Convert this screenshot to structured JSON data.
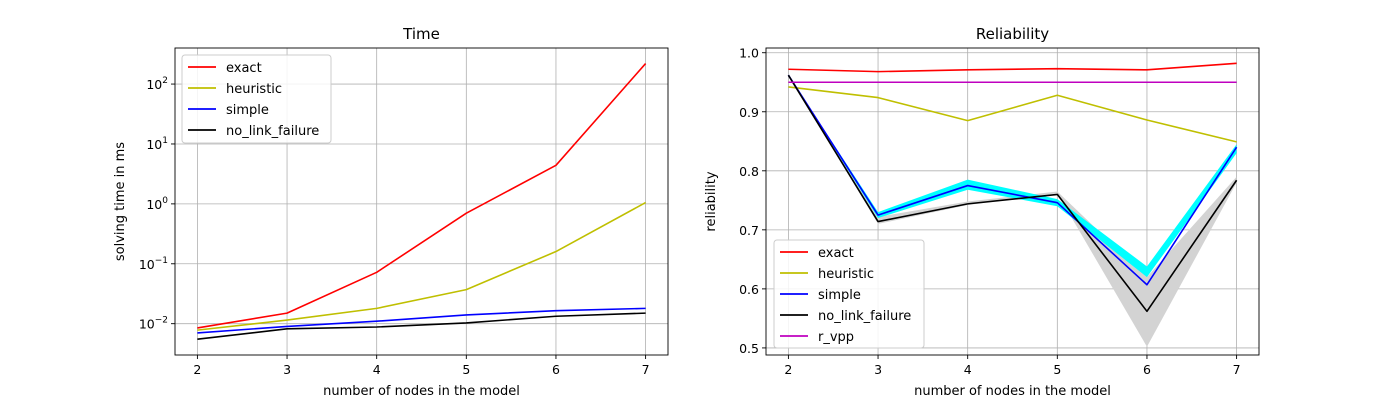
{
  "chart_data": [
    {
      "type": "line",
      "title": "Time",
      "xlabel": "number of nodes in the model",
      "ylabel": "solving time in ms",
      "y_scale": "log",
      "x": [
        2,
        3,
        4,
        5,
        6,
        7
      ],
      "xlim": [
        1.75,
        7.25
      ],
      "ylim": [
        0.003,
        400
      ],
      "x_ticks": [
        2,
        3,
        4,
        5,
        6,
        7
      ],
      "y_ticks": [
        {
          "value": 0.01,
          "base": "10",
          "exp": "−2"
        },
        {
          "value": 0.1,
          "base": "10",
          "exp": "−1"
        },
        {
          "value": 1,
          "base": "10",
          "exp": "0"
        },
        {
          "value": 10,
          "base": "10",
          "exp": "1"
        },
        {
          "value": 100,
          "base": "10",
          "exp": "2"
        }
      ],
      "grid": true,
      "legend_position": "upper-left",
      "series": [
        {
          "name": "exact",
          "color": "#ff0000",
          "values": [
            0.0085,
            0.015,
            0.072,
            0.7,
            4.4,
            220
          ]
        },
        {
          "name": "heuristic",
          "color": "#bfbf00",
          "values": [
            0.0078,
            0.0115,
            0.018,
            0.037,
            0.16,
            1.05
          ]
        },
        {
          "name": "simple",
          "color": "#0000ff",
          "values": [
            0.007,
            0.009,
            0.011,
            0.014,
            0.0165,
            0.018
          ]
        },
        {
          "name": "no_link_failure",
          "color": "#000000",
          "values": [
            0.0055,
            0.0082,
            0.0088,
            0.0103,
            0.0133,
            0.015
          ]
        }
      ]
    },
    {
      "type": "line",
      "title": "Reliability",
      "xlabel": "number of nodes in the model",
      "ylabel": "reliability",
      "y_scale": "linear",
      "x": [
        2,
        3,
        4,
        5,
        6,
        7
      ],
      "xlim": [
        1.75,
        7.25
      ],
      "ylim": [
        0.488,
        1.008
      ],
      "x_ticks": [
        2,
        3,
        4,
        5,
        6,
        7
      ],
      "y_ticks": [
        0.5,
        0.6,
        0.7,
        0.8,
        0.9,
        1.0
      ],
      "y_tick_labels": [
        "0.5",
        "0.6",
        "0.7",
        "0.8",
        "0.9",
        "1.0"
      ],
      "grid": true,
      "legend_position": "lower-left",
      "bands": [
        {
          "color": "#d3d3d3",
          "lower": [
            0.962,
            0.71,
            0.742,
            0.762,
            0.502,
            0.78
          ],
          "upper": [
            0.962,
            0.722,
            0.748,
            0.765,
            0.62,
            0.79
          ]
        },
        {
          "color": "#00ffff",
          "lower": [
            0.962,
            0.72,
            0.768,
            0.74,
            0.62,
            0.83
          ],
          "upper": [
            0.962,
            0.73,
            0.785,
            0.752,
            0.638,
            0.845
          ]
        }
      ],
      "series": [
        {
          "name": "exact",
          "color": "#ff0000",
          "values": [
            0.972,
            0.968,
            0.971,
            0.973,
            0.971,
            0.982
          ]
        },
        {
          "name": "heuristic",
          "color": "#bfbf00",
          "values": [
            0.942,
            0.924,
            0.885,
            0.928,
            0.886,
            0.849
          ]
        },
        {
          "name": "simple",
          "color": "#0000ff",
          "values": [
            0.962,
            0.725,
            0.775,
            0.746,
            0.607,
            0.84
          ]
        },
        {
          "name": "no_link_failure",
          "color": "#000000",
          "values": [
            0.962,
            0.714,
            0.744,
            0.76,
            0.562,
            0.784
          ]
        },
        {
          "name": "r_vpp",
          "color": "#bf00bf",
          "values": [
            0.95,
            0.95,
            0.95,
            0.95,
            0.95,
            0.95
          ]
        }
      ]
    }
  ]
}
